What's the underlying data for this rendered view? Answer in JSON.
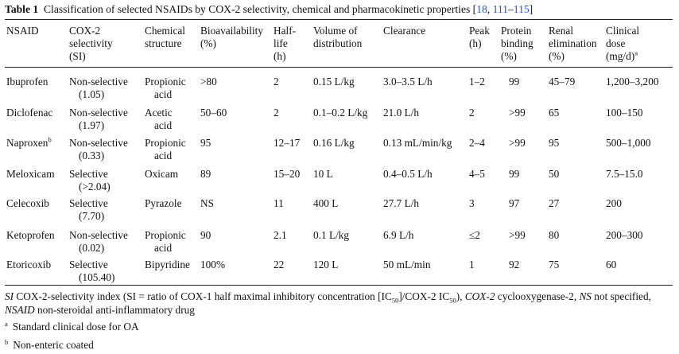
{
  "caption": {
    "label": "Table 1",
    "text": "Classification of selected NSAIDs by COX-2 selectivity, chemical and pharmacokinetic properties [",
    "ref1": "18",
    "sep": ", ",
    "ref2": "111",
    "dash": "–",
    "ref3": "115",
    "close": "]"
  },
  "headers": {
    "nsaid": "NSAID",
    "cox_line1": "COX-2",
    "cox_line2": "selectivity",
    "cox_line3": "(SI)",
    "chem_line1": "Chemical",
    "chem_line2": "structure",
    "bio_line1": "Bioavailability",
    "bio_line2": "(%)",
    "half_line1": "Half-",
    "half_line2": "life",
    "half_line3": "(h)",
    "vol_line1": "Volume of",
    "vol_line2": "distribution",
    "clear": "Clearance",
    "peak_line1": "Peak",
    "peak_line2": "(h)",
    "prot_line1": "Protein",
    "prot_line2": "binding",
    "prot_line3": "(%)",
    "renal_line1": "Renal",
    "renal_line2": "elimination",
    "renal_line3": "(%)",
    "dose_line1": "Clinical",
    "dose_line2": "dose",
    "dose_line3": "(mg/d)",
    "dose_sup": "a"
  },
  "rows": [
    {
      "nsaid": "Ibuprofen",
      "nsaid_sup": "",
      "sel": "Non-selective",
      "si": "(1.05)",
      "chem1": "Propionic",
      "chem2": "acid",
      "bio": ">80",
      "half": "2",
      "vol": "0.15 L/kg",
      "clear": "3.0–3.5 L/h",
      "peak": "1–2",
      "prot": "99",
      "renal": "45–79",
      "dose": "1,200–3,200"
    },
    {
      "nsaid": "Diclofenac",
      "nsaid_sup": "",
      "sel": "Non-selective",
      "si": "(1.97)",
      "chem1": "Acetic",
      "chem2": "acid",
      "bio": "50–60",
      "half": "2",
      "vol": "0.1–0.2 L/kg",
      "clear": "21.0 L/h",
      "peak": "2",
      "prot": ">99",
      "renal": "65",
      "dose": "100–150"
    },
    {
      "nsaid": "Naproxen",
      "nsaid_sup": "b",
      "sel": "Non-selective",
      "si": "(0.33)",
      "chem1": "Propionic",
      "chem2": "acid",
      "bio": "95",
      "half": "12–17",
      "vol": "0.16 L/kg",
      "clear": "0.13 mL/min/kg",
      "peak": "2–4",
      "prot": ">99",
      "renal": "95",
      "dose": "500–1,000"
    },
    {
      "nsaid": "Meloxicam",
      "nsaid_sup": "",
      "sel": "Selective",
      "si": "(>2.04)",
      "chem1": "Oxicam",
      "chem2": "",
      "bio": "89",
      "half": "15–20",
      "vol": "10 L",
      "clear": "0.4–0.5 L/h",
      "peak": "4–5",
      "prot": "99",
      "renal": "50",
      "dose": "7.5–15.0"
    },
    {
      "nsaid": "Celecoxib",
      "nsaid_sup": "",
      "sel": "Selective",
      "si": "(7.70)",
      "chem1": "Pyrazole",
      "chem2": "",
      "bio": "NS",
      "half": "11",
      "vol": "400 L",
      "clear": "27.7 L/h",
      "peak": "3",
      "prot": "97",
      "renal": "27",
      "dose": "200"
    },
    {
      "nsaid": "Ketoprofen",
      "nsaid_sup": "",
      "sel": "Non-selective",
      "si": "(0.02)",
      "chem1": "Propionic",
      "chem2": "acid",
      "bio": "90",
      "half": "2.1",
      "vol": "0.1 L/kg",
      "clear": "6.9 L/h",
      "peak": "≤2",
      "prot": ">99",
      "renal": "80",
      "dose": "200–300"
    },
    {
      "nsaid": "Etoricoxib",
      "nsaid_sup": "",
      "sel": "Selective",
      "si": "(105.40)",
      "chem1": "Bipyridine",
      "chem2": "",
      "bio": "100%",
      "half": "22",
      "vol": "120 L",
      "clear": "50 mL/min",
      "peak": "1",
      "prot": "92",
      "renal": "75",
      "dose": "60"
    }
  ],
  "footnote": {
    "si_abbr": "SI",
    "si_text_a": " COX-2-selectivity index (SI = ratio of COX-1 half maximal inhibitory concentration [IC",
    "ic_sub1": "50",
    "si_text_b": "]/COX-2 IC",
    "ic_sub2": "50",
    "si_text_c": "), ",
    "cox_abbr": "COX-2",
    "cox_text": " cyclooxygenase-2, ",
    "ns_abbr": "NS",
    "ns_text": " not specified, ",
    "nsaid_abbr": "NSAID",
    "nsaid_text": " non-steroidal anti-inflammatory drug",
    "a_mark": "a",
    "a_text": "Standard clinical dose for OA",
    "b_mark": "b",
    "b_text": "Non-enteric coated"
  }
}
